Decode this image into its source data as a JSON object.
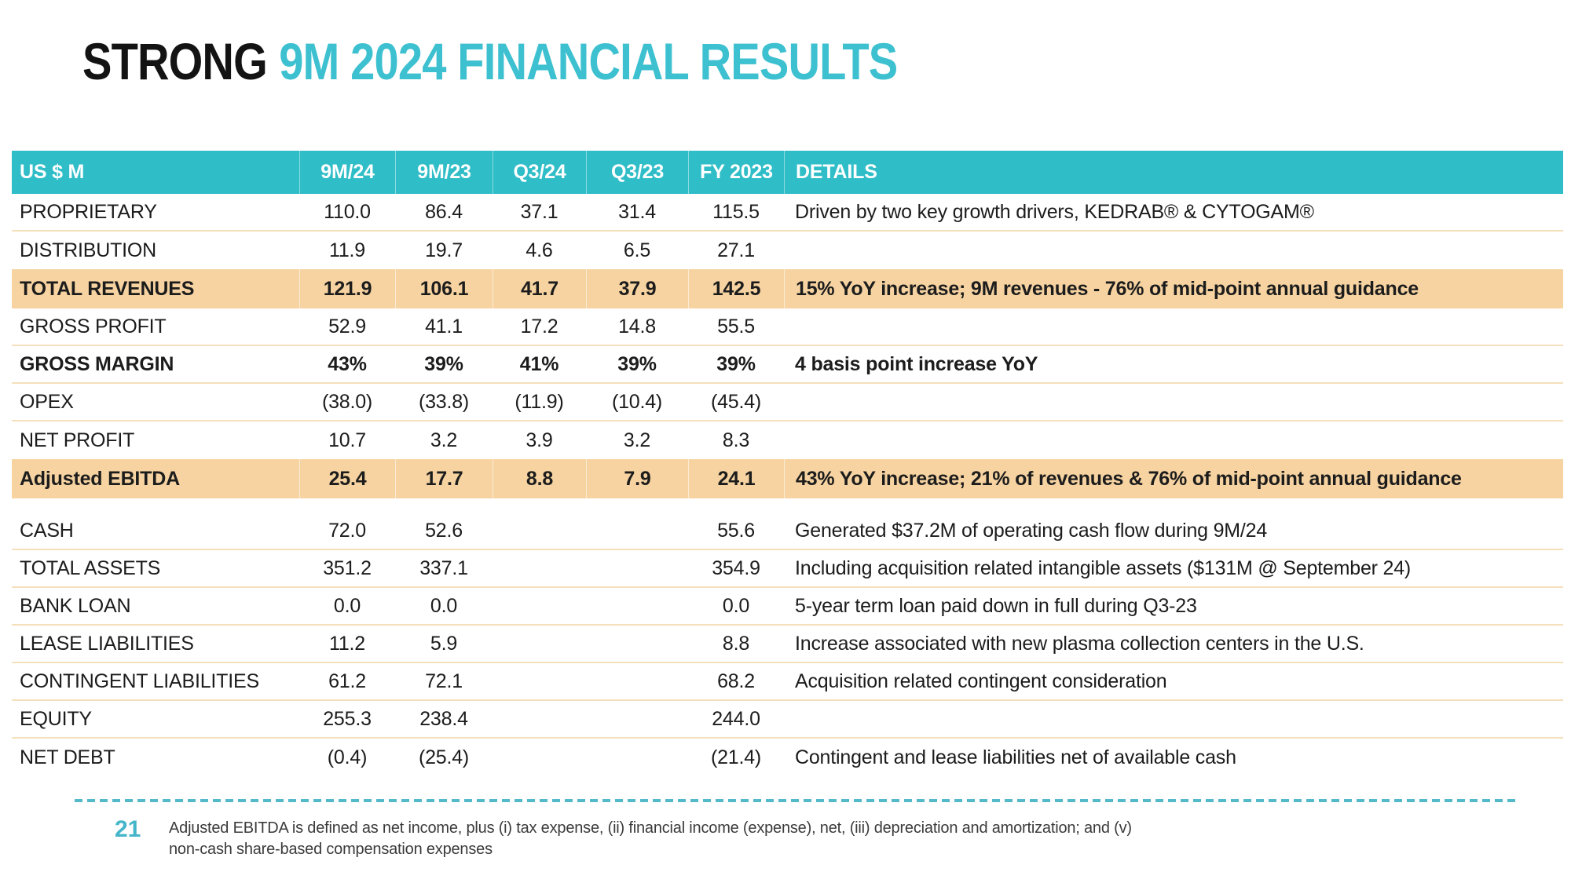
{
  "title": {
    "prefix": "STRONG",
    "highlight": "9M 2024 FINANCIAL RESULTS"
  },
  "table": {
    "columns": [
      "US $ M",
      "9M/24",
      "9M/23",
      "Q3/24",
      "Q3/23",
      "FY 2023",
      "DETAILS"
    ],
    "rows": [
      {
        "label": "PROPRIETARY",
        "values": [
          "110.0",
          "86.4",
          "37.1",
          "31.4",
          "115.5"
        ],
        "details": "Driven by two key growth drivers, KEDRAB® & CYTOGAM®",
        "style": "normal"
      },
      {
        "label": "DISTRIBUTION",
        "values": [
          "11.9",
          "19.7",
          "4.6",
          "6.5",
          "27.1"
        ],
        "details": "",
        "style": "normal"
      },
      {
        "label": "TOTAL REVENUES",
        "values": [
          "121.9",
          "106.1",
          "41.7",
          "37.9",
          "142.5"
        ],
        "details": "15% YoY increase; 9M revenues - 76% of mid-point annual guidance",
        "style": "highlight"
      },
      {
        "label": "GROSS PROFIT",
        "values": [
          "52.9",
          "41.1",
          "17.2",
          "14.8",
          "55.5"
        ],
        "details": "",
        "style": "normal"
      },
      {
        "label": "GROSS MARGIN",
        "values": [
          "43%",
          "39%",
          "41%",
          "39%",
          "39%"
        ],
        "details": "4 basis point increase YoY",
        "style": "bold"
      },
      {
        "label": "OPEX",
        "values": [
          "(38.0)",
          "(33.8)",
          "(11.9)",
          "(10.4)",
          "(45.4)"
        ],
        "details": "",
        "style": "normal"
      },
      {
        "label": "NET PROFIT",
        "values": [
          "10.7",
          "3.2",
          "3.9",
          "3.2",
          "8.3"
        ],
        "details": "",
        "style": "normal"
      },
      {
        "label": "Adjusted EBITDA",
        "values": [
          "25.4",
          "17.7",
          "8.8",
          "7.9",
          "24.1"
        ],
        "details": "43% YoY increase; 21% of revenues & 76% of mid-point annual guidance",
        "style": "highlight"
      },
      {
        "label": "CASH",
        "values": [
          "72.0",
          "52.6",
          "",
          "",
          "55.6"
        ],
        "details": "Generated $37.2M of operating cash flow during 9M/24",
        "style": "normal",
        "gap_before": true
      },
      {
        "label": "TOTAL ASSETS",
        "values": [
          "351.2",
          "337.1",
          "",
          "",
          "354.9"
        ],
        "details": "Including acquisition related intangible assets ($131M @ September 24)",
        "style": "normal"
      },
      {
        "label": "BANK LOAN",
        "values": [
          "0.0",
          "0.0",
          "",
          "",
          "0.0"
        ],
        "details": "5-year term loan paid down in full during Q3-23",
        "style": "normal"
      },
      {
        "label": "LEASE LIABILITIES",
        "values": [
          "11.2",
          "5.9",
          "",
          "",
          "8.8"
        ],
        "details": "Increase associated with new plasma collection centers in the U.S.",
        "style": "normal"
      },
      {
        "label": "CONTINGENT LIABILITIES",
        "values": [
          "61.2",
          "72.1",
          "",
          "",
          "68.2"
        ],
        "details": "Acquisition related contingent consideration",
        "style": "normal"
      },
      {
        "label": "EQUITY",
        "values": [
          "255.3",
          "238.4",
          "",
          "",
          "244.0"
        ],
        "details": "",
        "style": "normal"
      },
      {
        "label": "NET DEBT",
        "values": [
          "(0.4)",
          "(25.4)",
          "",
          "",
          "(21.4)"
        ],
        "details": "Contingent and lease liabilities net of available cash",
        "style": "normal"
      }
    ]
  },
  "footer": {
    "page_number": "21",
    "footnote_line1": "Adjusted EBITDA is defined as net income, plus (i) tax expense, (ii) financial income (expense), net, (iii) depreciation and amortization; and (v)",
    "footnote_line2": "non-cash share-based compensation expenses"
  },
  "colors": {
    "header_teal": "#2fbdc7",
    "title_teal": "#3dc0cf",
    "highlight_orange": "#f6d3a1",
    "row_border": "#f5e0bc",
    "text": "#1c1c1c",
    "footnote_text": "#3b3b3b",
    "page_number_teal": "#45b5ca"
  }
}
